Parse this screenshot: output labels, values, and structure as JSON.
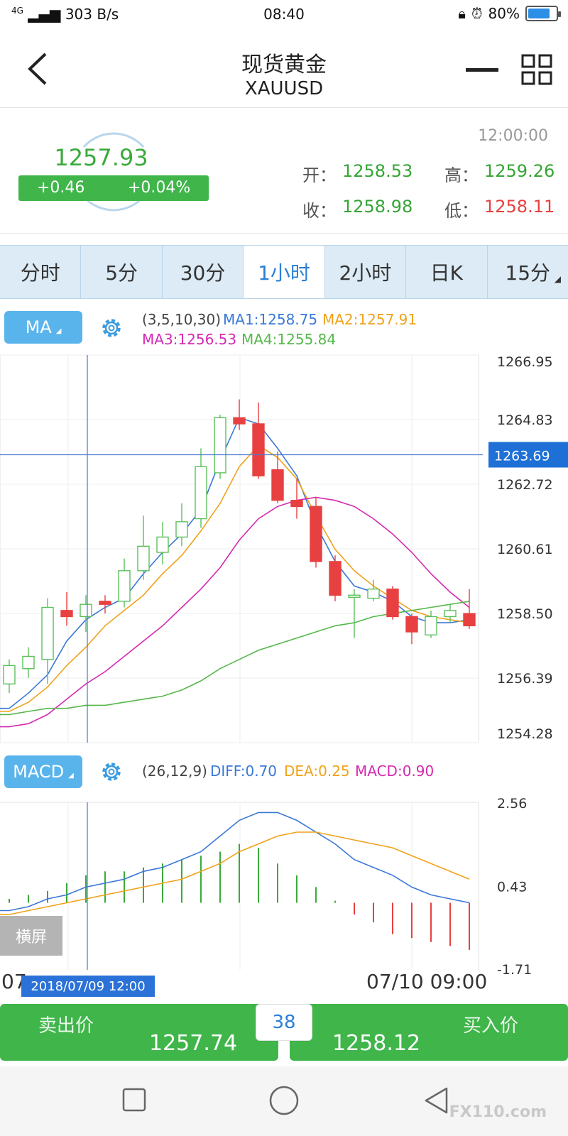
{
  "status_bar": {
    "network": "303 B/s",
    "signal": "4G",
    "time": "08:40",
    "battery": "80%",
    "battery_level": 0.8
  },
  "header": {
    "title": "现货黄金",
    "symbol": "XAUUSD"
  },
  "quote": {
    "price": "1257.93",
    "change": "+0.46",
    "change_pct": "+0.04%",
    "time": "12:00:00",
    "open_label": "开：",
    "open": "1258.53",
    "high_label": "高：",
    "high": "1259.26",
    "close_label": "收：",
    "close": "1258.98",
    "low_label": "低：",
    "low": "1258.11"
  },
  "tabs": [
    {
      "label": "分时"
    },
    {
      "label": "5分"
    },
    {
      "label": "30分"
    },
    {
      "label": "1小时",
      "active": true
    },
    {
      "label": "2小时"
    },
    {
      "label": "日K"
    },
    {
      "label": "15分",
      "dropdown": true
    }
  ],
  "ma_panel": {
    "button": "MA",
    "params": "(3,5,10,30)",
    "ma1": "MA1:1258.75",
    "ma2": "MA2:1257.91",
    "ma3": "MA3:1256.53",
    "ma4": "MA4:1255.84"
  },
  "macd_panel": {
    "button": "MACD",
    "params": "(26,12,9)",
    "diff": "DIFF:0.70",
    "dea": "DEA:0.25",
    "macd": "MACD:0.90"
  },
  "price_axis": {
    "ticks": [
      "1266.95",
      "1264.83",
      "1262.72",
      "1260.61",
      "1258.50",
      "1256.39",
      "1254.28"
    ],
    "crosshair_value": "1263.69"
  },
  "macd_axis": {
    "ticks": [
      "2.56",
      "0.43",
      "-1.71"
    ]
  },
  "x_axis": {
    "left_partial": "07",
    "selected_date": "2018/07/09 12:00",
    "right_label": "07/10 09:00"
  },
  "landscape_button": "横屏",
  "trade": {
    "sell_label": "卖出价",
    "sell_price": "1257.74",
    "spread": "38",
    "buy_label": "买入价",
    "buy_price": "1258.12"
  },
  "watermark": "FX110.com",
  "colors": {
    "up": "#3aaa3a",
    "down": "#e84040",
    "accent": "#2a7fd6",
    "tab_bg": "#dcebf5"
  },
  "chart_data": [
    {
      "type": "candlestick",
      "title": "",
      "ylim": [
        1254.28,
        1266.95
      ],
      "candles": [
        {
          "o": 1256.2,
          "c": 1256.8,
          "h": 1257.0,
          "l": 1255.9
        },
        {
          "o": 1256.7,
          "c": 1257.1,
          "h": 1257.4,
          "l": 1256.4
        },
        {
          "o": 1257.0,
          "c": 1258.7,
          "h": 1259.0,
          "l": 1256.2
        },
        {
          "o": 1258.6,
          "c": 1258.4,
          "h": 1259.2,
          "l": 1258.1
        },
        {
          "o": 1258.4,
          "c": 1258.8,
          "h": 1259.1,
          "l": 1257.9
        },
        {
          "o": 1258.9,
          "c": 1258.8,
          "h": 1259.1,
          "l": 1258.5
        },
        {
          "o": 1258.9,
          "c": 1259.9,
          "h": 1260.3,
          "l": 1258.7
        },
        {
          "o": 1259.9,
          "c": 1260.7,
          "h": 1261.7,
          "l": 1259.6
        },
        {
          "o": 1260.5,
          "c": 1261.0,
          "h": 1261.5,
          "l": 1260.1
        },
        {
          "o": 1261.0,
          "c": 1261.5,
          "h": 1262.1,
          "l": 1260.7
        },
        {
          "o": 1261.6,
          "c": 1263.3,
          "h": 1263.9,
          "l": 1261.3
        },
        {
          "o": 1263.1,
          "c": 1264.9,
          "h": 1265.0,
          "l": 1262.9
        },
        {
          "o": 1264.9,
          "c": 1264.7,
          "h": 1265.5,
          "l": 1264.5
        },
        {
          "o": 1264.7,
          "c": 1263.0,
          "h": 1265.4,
          "l": 1262.9
        },
        {
          "o": 1263.2,
          "c": 1262.2,
          "h": 1263.8,
          "l": 1262.1
        },
        {
          "o": 1262.2,
          "c": 1262.0,
          "h": 1262.9,
          "l": 1261.6
        },
        {
          "o": 1262.0,
          "c": 1260.2,
          "h": 1262.3,
          "l": 1260.0
        },
        {
          "o": 1260.2,
          "c": 1259.1,
          "h": 1260.4,
          "l": 1258.9
        },
        {
          "o": 1259.1,
          "c": 1259.1,
          "h": 1259.3,
          "l": 1257.7
        },
        {
          "o": 1259.0,
          "c": 1259.3,
          "h": 1259.6,
          "l": 1258.9
        },
        {
          "o": 1259.3,
          "c": 1258.4,
          "h": 1259.4,
          "l": 1258.3
        },
        {
          "o": 1258.4,
          "c": 1257.9,
          "h": 1258.5,
          "l": 1257.5
        },
        {
          "o": 1257.8,
          "c": 1258.4,
          "h": 1258.6,
          "l": 1257.7
        },
        {
          "o": 1258.4,
          "c": 1258.6,
          "h": 1258.8,
          "l": 1258.2
        },
        {
          "o": 1258.5,
          "c": 1258.1,
          "h": 1259.3,
          "l": 1258.0
        }
      ],
      "series": [
        {
          "name": "MA1",
          "color": "#3a78d6",
          "values": [
            1255.4,
            1255.9,
            1256.5,
            1257.6,
            1258.3,
            1258.7,
            1259.0,
            1259.8,
            1260.5,
            1261.1,
            1261.9,
            1263.5,
            1264.9,
            1264.7,
            1263.9,
            1263.0,
            1261.4,
            1260.2,
            1259.4,
            1259.2,
            1258.9,
            1258.4,
            1258.2,
            1258.2,
            1258.3
          ]
        },
        {
          "name": "MA2",
          "color": "#f0a21a",
          "values": [
            1255.3,
            1255.6,
            1256.1,
            1256.8,
            1257.4,
            1258.1,
            1258.6,
            1259.1,
            1259.8,
            1260.4,
            1261.2,
            1262.1,
            1263.3,
            1264.0,
            1263.6,
            1262.9,
            1261.7,
            1260.6,
            1259.9,
            1259.4,
            1259.0,
            1258.6,
            1258.4,
            1258.3,
            1258.2
          ]
        },
        {
          "name": "MA3",
          "color": "#d42ab0",
          "values": [
            1254.8,
            1254.9,
            1255.2,
            1255.7,
            1256.2,
            1256.6,
            1257.1,
            1257.6,
            1258.1,
            1258.7,
            1259.3,
            1260.0,
            1260.9,
            1261.6,
            1262.0,
            1262.2,
            1262.3,
            1262.2,
            1262.0,
            1261.6,
            1261.1,
            1260.5,
            1259.8,
            1259.2,
            1258.7
          ]
        },
        {
          "name": "MA4",
          "color": "#55b84a",
          "values": [
            1255.2,
            1255.3,
            1255.4,
            1255.4,
            1255.5,
            1255.5,
            1255.6,
            1255.7,
            1255.8,
            1256.0,
            1256.3,
            1256.7,
            1257.0,
            1257.3,
            1257.5,
            1257.7,
            1257.9,
            1258.1,
            1258.2,
            1258.4,
            1258.5,
            1258.6,
            1258.7,
            1258.8,
            1258.9
          ]
        }
      ]
    },
    {
      "type": "bar",
      "title": "",
      "ylim": [
        -1.71,
        2.56
      ],
      "histogram": [
        0.1,
        0.2,
        0.3,
        0.5,
        0.7,
        0.8,
        0.8,
        0.9,
        1.0,
        1.1,
        1.2,
        1.3,
        1.5,
        1.4,
        1.0,
        0.7,
        0.4,
        0.05,
        -0.3,
        -0.5,
        -0.8,
        -0.9,
        -1.0,
        -1.1,
        -1.2
      ],
      "series": [
        {
          "name": "DIFF",
          "color": "#3a78d6",
          "values": [
            -0.2,
            -0.1,
            0.1,
            0.2,
            0.4,
            0.5,
            0.6,
            0.8,
            0.9,
            1.1,
            1.3,
            1.7,
            2.1,
            2.3,
            2.3,
            2.1,
            1.8,
            1.5,
            1.1,
            0.9,
            0.7,
            0.4,
            0.2,
            0.1,
            0.0
          ]
        },
        {
          "name": "DEA",
          "color": "#f0a21a",
          "values": [
            -0.3,
            -0.2,
            -0.1,
            0.0,
            0.1,
            0.2,
            0.3,
            0.4,
            0.5,
            0.6,
            0.8,
            1.0,
            1.3,
            1.5,
            1.7,
            1.8,
            1.8,
            1.7,
            1.6,
            1.5,
            1.4,
            1.2,
            1.0,
            0.8,
            0.6
          ]
        }
      ]
    }
  ]
}
